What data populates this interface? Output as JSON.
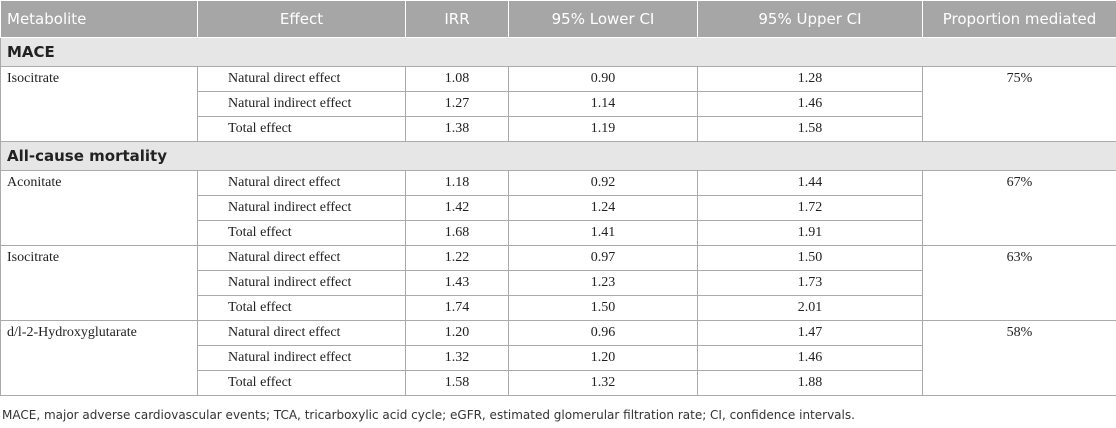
{
  "header": {
    "columns": [
      "Metabolite",
      "Effect",
      "IRR",
      "95% Lower CI",
      "95% Upper CI",
      "Proportion mediated"
    ]
  },
  "sections": [
    {
      "title": "MACE",
      "groups": [
        {
          "metabolite": "Isocitrate",
          "proportion": "75%",
          "rows": [
            [
              "Natural direct effect",
              "1.08",
              "0.90",
              "1.28"
            ],
            [
              "Natural indirect effect",
              "1.27",
              "1.14",
              "1.46"
            ],
            [
              "Total effect",
              "1.38",
              "1.19",
              "1.58"
            ]
          ]
        }
      ]
    },
    {
      "title": "All-cause mortality",
      "groups": [
        {
          "metabolite": "Aconitate",
          "proportion": "67%",
          "rows": [
            [
              "Natural direct effect",
              "1.18",
              "0.92",
              "1.44"
            ],
            [
              "Natural indirect effect",
              "1.42",
              "1.24",
              "1.72"
            ],
            [
              "Total effect",
              "1.68",
              "1.41",
              "1.91"
            ]
          ]
        },
        {
          "metabolite": "Isocitrate",
          "proportion": "63%",
          "rows": [
            [
              "Natural direct effect",
              "1.22",
              "0.97",
              "1.50"
            ],
            [
              "Natural indirect effect",
              "1.43",
              "1.23",
              "1.73"
            ],
            [
              "Total effect",
              "1.74",
              "1.50",
              "2.01"
            ]
          ]
        },
        {
          "metabolite": "d/l-2-Hydroxyglutarate",
          "proportion": "58%",
          "rows": [
            [
              "Natural direct effect",
              "1.20",
              "0.96",
              "1.47"
            ],
            [
              "Natural indirect effect",
              "1.32",
              "1.20",
              "1.46"
            ],
            [
              "Total effect",
              "1.58",
              "1.32",
              "1.88"
            ]
          ]
        }
      ]
    }
  ],
  "footnote": "MACE, major adverse cardiovascular events; TCA, tricarboxylic acid cycle; eGFR, estimated glomerular filtration rate; CI, confidence intervals."
}
